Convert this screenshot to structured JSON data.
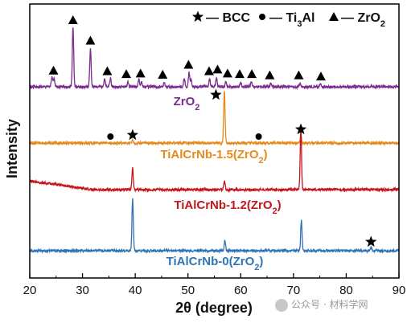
{
  "chart_data": {
    "type": "line",
    "title": "",
    "xlabel": "2θ (degree)",
    "ylabel": "Intensity",
    "xlim": [
      20,
      90
    ],
    "xticks": [
      20,
      30,
      40,
      50,
      60,
      70,
      80,
      90
    ],
    "y_tick_labels": false,
    "grid": false,
    "legend": {
      "placement": "top",
      "entries": [
        {
          "symbol": "star",
          "text": "— BCC"
        },
        {
          "symbol": "circle",
          "text": "— Ti",
          "sub": "3",
          "tail": "Al"
        },
        {
          "symbol": "triangle",
          "text": "— ZrO",
          "sub": "2",
          "tail": ""
        }
      ]
    },
    "series": [
      {
        "name": "ZrO2",
        "label": {
          "main": "ZrO",
          "sub": "2",
          "tail": ""
        },
        "color": "#7b2c8e",
        "peaks": [
          {
            "x": 24.2,
            "h": 0.18
          },
          {
            "x": 24.6,
            "h": 0.14
          },
          {
            "x": 28.2,
            "h": 1.0
          },
          {
            "x": 31.5,
            "h": 0.65
          },
          {
            "x": 34.2,
            "h": 0.13
          },
          {
            "x": 35.3,
            "h": 0.15
          },
          {
            "x": 38.6,
            "h": 0.08
          },
          {
            "x": 40.7,
            "h": 0.13
          },
          {
            "x": 41.2,
            "h": 0.09
          },
          {
            "x": 45.5,
            "h": 0.07
          },
          {
            "x": 49.3,
            "h": 0.15
          },
          {
            "x": 50.2,
            "h": 0.24
          },
          {
            "x": 50.6,
            "h": 0.12
          },
          {
            "x": 54.1,
            "h": 0.13
          },
          {
            "x": 55.4,
            "h": 0.16
          },
          {
            "x": 57.2,
            "h": 0.09
          },
          {
            "x": 60.0,
            "h": 0.08
          },
          {
            "x": 62.0,
            "h": 0.08
          },
          {
            "x": 65.7,
            "h": 0.06
          },
          {
            "x": 71.2,
            "h": 0.06
          },
          {
            "x": 75.1,
            "h": 0.04
          }
        ],
        "markers": [
          {
            "x": 24.5,
            "symbol": "triangle"
          },
          {
            "x": 28.2,
            "symbol": "triangle"
          },
          {
            "x": 31.5,
            "symbol": "triangle"
          },
          {
            "x": 34.7,
            "symbol": "triangle"
          },
          {
            "x": 38.3,
            "symbol": "triangle"
          },
          {
            "x": 41.0,
            "symbol": "triangle"
          },
          {
            "x": 45.2,
            "symbol": "triangle"
          },
          {
            "x": 50.1,
            "symbol": "triangle"
          },
          {
            "x": 54.0,
            "symbol": "triangle"
          },
          {
            "x": 55.6,
            "symbol": "triangle"
          },
          {
            "x": 57.5,
            "symbol": "triangle"
          },
          {
            "x": 59.8,
            "symbol": "triangle"
          },
          {
            "x": 62.1,
            "symbol": "triangle"
          },
          {
            "x": 65.5,
            "symbol": "triangle"
          },
          {
            "x": 71.0,
            "symbol": "triangle"
          },
          {
            "x": 75.2,
            "symbol": "triangle"
          }
        ]
      },
      {
        "name": "TiAlCrNb-1.5(ZrO2)",
        "label": {
          "main": "TiAlCrNb-1.5(ZrO",
          "sub": "2",
          "tail": ")"
        },
        "color": "#e68a1c",
        "peaks": [
          {
            "x": 39.5,
            "h": 0.07
          },
          {
            "x": 56.9,
            "h": 1.0
          },
          {
            "x": 71.4,
            "h": 0.15
          }
        ],
        "markers": [
          {
            "x": 35.3,
            "symbol": "circle"
          },
          {
            "x": 39.5,
            "symbol": "star"
          },
          {
            "x": 55.3,
            "symbol": "star"
          },
          {
            "x": 63.4,
            "symbol": "circle"
          },
          {
            "x": 71.4,
            "symbol": "star"
          }
        ]
      },
      {
        "name": "TiAlCrNb-1.2(ZrO2)",
        "label": {
          "main": "TiAlCrNb-1.2(ZrO",
          "sub": "2",
          "tail": ")"
        },
        "color": "#c4161c",
        "peaks": [
          {
            "x": 39.5,
            "h": 0.35
          },
          {
            "x": 56.9,
            "h": 0.15
          },
          {
            "x": 71.4,
            "h": 1.0
          }
        ],
        "markers": []
      },
      {
        "name": "TiAlCrNb-0(ZrO2)",
        "label": {
          "main": "TiAlCrNb-0(ZrO",
          "sub": "2",
          "tail": ")"
        },
        "color": "#2f74b5",
        "peaks": [
          {
            "x": 39.5,
            "h": 1.0
          },
          {
            "x": 57.0,
            "h": 0.2
          },
          {
            "x": 71.5,
            "h": 0.6
          },
          {
            "x": 84.7,
            "h": 0.06
          }
        ],
        "markers": [
          {
            "x": 84.7,
            "symbol": "star"
          }
        ]
      }
    ]
  },
  "watermark": {
    "text": "公众号 · 材料学网"
  }
}
